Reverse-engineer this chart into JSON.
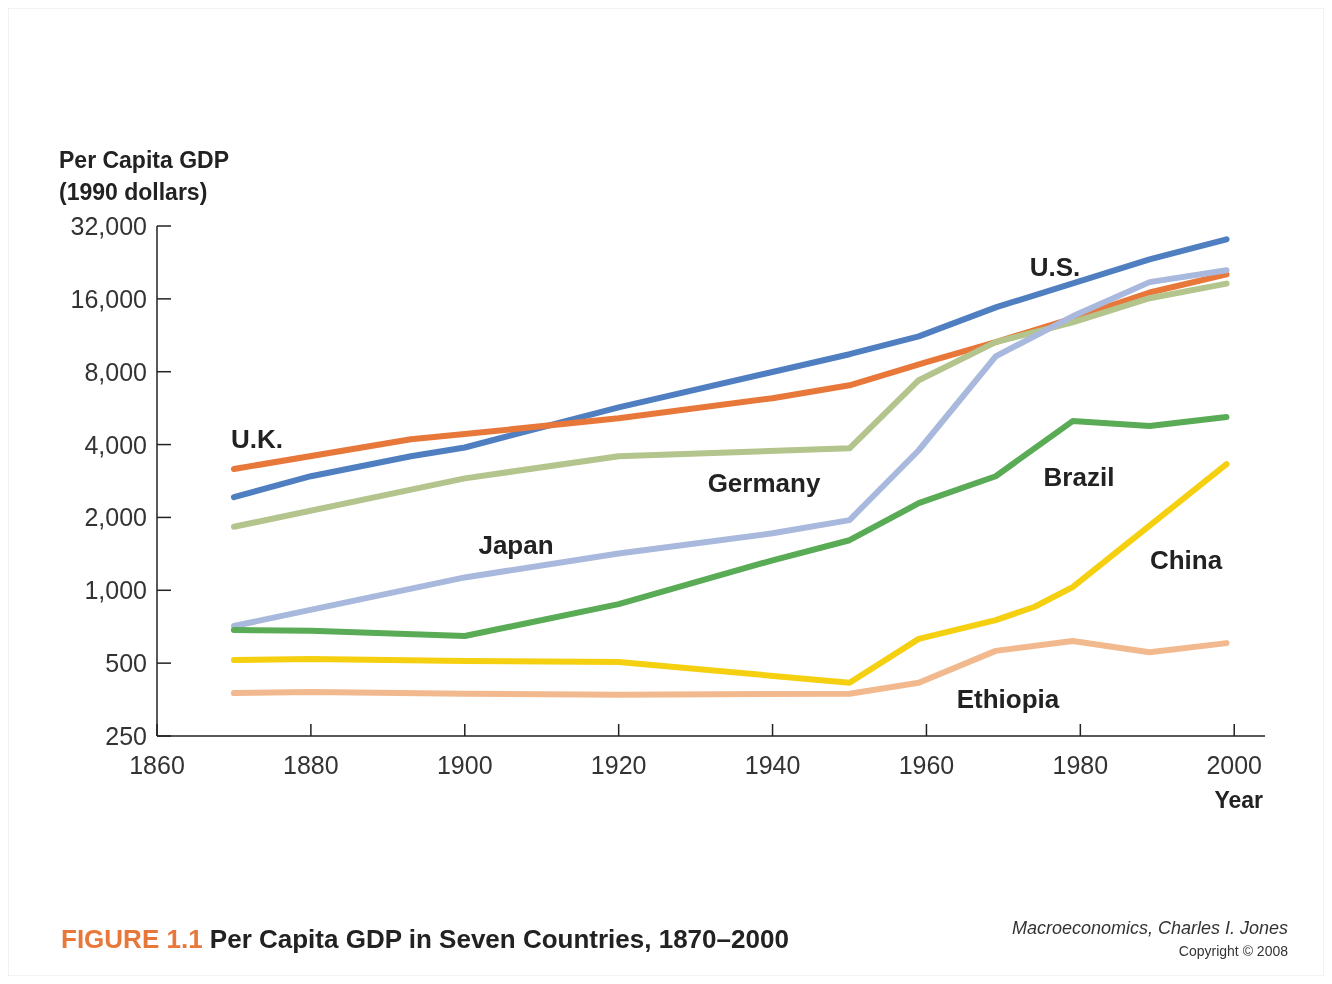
{
  "chart_data": {
    "type": "line",
    "title": "FIGURE 1.1 Per Capita GDP in Seven Countries, 1870–2000",
    "ylabel": "Per Capita GDP\n(1990 dollars)",
    "xlabel": "Year",
    "log": "y",
    "xlim": [
      1860,
      2004
    ],
    "xticks": [
      1860,
      1880,
      1900,
      1920,
      1940,
      1960,
      1980,
      2000
    ],
    "ylim": [
      250,
      32000
    ],
    "yticks": [
      250,
      500,
      {
        "value": 1000,
        "label": "1,000"
      },
      {
        "value": 2000,
        "label": "2,000"
      },
      {
        "value": 4000,
        "label": "4,000"
      },
      {
        "value": 8000,
        "label": "8,000"
      },
      {
        "value": 16000,
        "label": "16,000"
      },
      {
        "value": 32000,
        "label": "32,000"
      }
    ],
    "grid": false,
    "marker": "none",
    "series": [
      {
        "name": "U.S.",
        "color": "#4f7fc0",
        "x": [
          1870,
          1880,
          1893,
          1900,
          1920,
          1950,
          1959,
          1969,
          1989,
          1999
        ],
        "values": [
          2425,
          2960,
          3580,
          3890,
          5700,
          9450,
          11200,
          14750,
          23300,
          28200
        ]
      },
      {
        "name": "U.K.",
        "color": "#e8773a",
        "x": [
          1870,
          1893,
          1900,
          1920,
          1940,
          1950,
          1960,
          1969,
          1979,
          1989,
          1999
        ],
        "values": [
          3170,
          4210,
          4420,
          5140,
          6220,
          7030,
          8760,
          10600,
          13300,
          17000,
          20200
        ]
      },
      {
        "name": "Germany",
        "color": "#b3c48c",
        "x": [
          1870,
          1900,
          1920,
          1950,
          1959,
          1969,
          1979,
          1989,
          1999
        ],
        "values": [
          1830,
          2900,
          3580,
          3860,
          7380,
          10600,
          12800,
          16100,
          18500
        ]
      },
      {
        "name": "Japan",
        "color": "#a8b9dd",
        "x": [
          1870,
          1900,
          1920,
          1940,
          1950,
          1959,
          1969,
          1979,
          1989,
          1999
        ],
        "values": [
          712,
          1130,
          1420,
          1720,
          1950,
          3790,
          9260,
          13550,
          18760,
          21000
        ]
      },
      {
        "name": "Brazil",
        "color": "#5aab55",
        "x": [
          1870,
          1880,
          1900,
          1920,
          1940,
          1950,
          1959,
          1969,
          1979,
          1989,
          1999
        ],
        "values": [
          685,
          680,
          647,
          877,
          1330,
          1610,
          2290,
          2960,
          5000,
          4770,
          5200
        ]
      },
      {
        "name": "China",
        "color": "#f5d010",
        "x": [
          1870,
          1880,
          1900,
          1920,
          1950,
          1959,
          1969,
          1974,
          1979,
          1989,
          1999
        ],
        "values": [
          515,
          520,
          510,
          505,
          415,
          630,
          753,
          853,
          1030,
          1850,
          3320
        ]
      },
      {
        "name": "Ethiopia",
        "color": "#f2b98e",
        "x": [
          1870,
          1880,
          1900,
          1920,
          1950,
          1959,
          1969,
          1979,
          1989,
          1999
        ],
        "values": [
          376,
          380,
          374,
          370,
          374,
          415,
          562,
          617,
          555,
          605
        ]
      }
    ],
    "annotations": [
      "Macroeconomics, Charles I. Jones",
      "Copyright © 2008"
    ]
  }
}
